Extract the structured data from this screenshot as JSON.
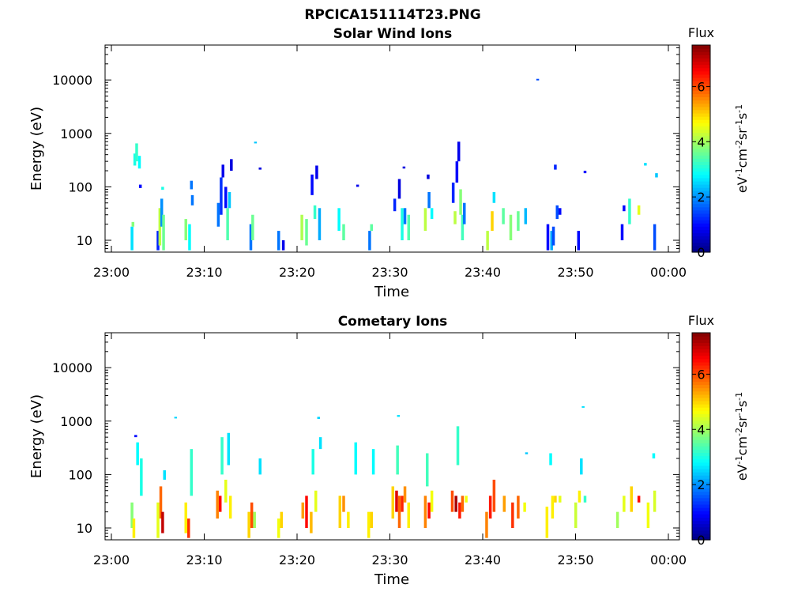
{
  "figure": {
    "filename": "RPCICA151114T23.PNG"
  },
  "colors": {
    "jet": [
      "#00007f",
      "#0000ff",
      "#007fff",
      "#00ffff",
      "#7fff7f",
      "#ffff00",
      "#ff7f00",
      "#ff0000",
      "#7f0000"
    ]
  },
  "chart_data": [
    {
      "type": "heatmap",
      "title": "Solar Wind Ions",
      "xlabel": "Time",
      "ylabel": "Energy (eV)",
      "xticks": [
        "23:00",
        "23:10",
        "23:20",
        "23:30",
        "23:40",
        "23:50",
        "00:00"
      ],
      "xlim_min": [
        0,
        61.5
      ],
      "yscale": "log",
      "yticks": [
        10,
        100,
        1000,
        10000
      ],
      "yticklabels": [
        "10",
        "100",
        "1000",
        "10000"
      ],
      "ylim": [
        6,
        45000
      ],
      "colorbar": {
        "title": "Flux",
        "label": "eV-1cm-2sr-1s-1",
        "range": [
          0,
          7.5
        ],
        "ticks": [
          0,
          2,
          4,
          6
        ]
      },
      "cells": [
        [
          2.2,
          6.5,
          18,
          2.6
        ],
        [
          2.3,
          18,
          22,
          3.8
        ],
        [
          2.5,
          250,
          420,
          3
        ],
        [
          2.7,
          300,
          650,
          3.2
        ],
        [
          3.0,
          220,
          380,
          2.8
        ],
        [
          3.1,
          95,
          110,
          1
        ],
        [
          5.0,
          6.5,
          15,
          1.2
        ],
        [
          5.2,
          8,
          40,
          4.2
        ],
        [
          5.4,
          18,
          60,
          2
        ],
        [
          5.6,
          6.5,
          30,
          3.6
        ],
        [
          5.5,
          88,
          100,
          3
        ],
        [
          8.0,
          10,
          25,
          3.8
        ],
        [
          8.4,
          6.5,
          20,
          2.8
        ],
        [
          8.7,
          45,
          70,
          1.8
        ],
        [
          8.6,
          90,
          130,
          1.8
        ],
        [
          11.5,
          18,
          50,
          1.8
        ],
        [
          11.8,
          30,
          150,
          1.3
        ],
        [
          12.0,
          150,
          260,
          0.8
        ],
        [
          12.3,
          40,
          100,
          1
        ],
        [
          12.5,
          10,
          40,
          3.4
        ],
        [
          12.7,
          40,
          80,
          2.4
        ],
        [
          12.9,
          200,
          330,
          0.7
        ],
        [
          15.0,
          6.5,
          20,
          1.8
        ],
        [
          15.2,
          10,
          30,
          3.6
        ],
        [
          15.5,
          650,
          700,
          2.4
        ],
        [
          16.0,
          210,
          230,
          0.7
        ],
        [
          18.0,
          6.5,
          15,
          1.8
        ],
        [
          18.5,
          6.5,
          10,
          0.8
        ],
        [
          20.5,
          10,
          30,
          4.1
        ],
        [
          21.0,
          8,
          25,
          3.6
        ],
        [
          21.6,
          70,
          170,
          1
        ],
        [
          21.9,
          25,
          45,
          3.2
        ],
        [
          22.1,
          140,
          250,
          0.8
        ],
        [
          22.4,
          10,
          40,
          2.2
        ],
        [
          24.5,
          15,
          40,
          2.8
        ],
        [
          25.0,
          10,
          20,
          3.5
        ],
        [
          26.5,
          100,
          110,
          0.8
        ],
        [
          27.8,
          6.5,
          15,
          1.8
        ],
        [
          28.0,
          15,
          20,
          3.5
        ],
        [
          30.5,
          35,
          60,
          1.2
        ],
        [
          31.0,
          60,
          140,
          0.7
        ],
        [
          31.3,
          10,
          40,
          3
        ],
        [
          31.6,
          20,
          40,
          1.8
        ],
        [
          32.0,
          10,
          30,
          3.4
        ],
        [
          31.5,
          220,
          240,
          0.7
        ],
        [
          33.8,
          15,
          40,
          4.2
        ],
        [
          34.2,
          40,
          80,
          1.8
        ],
        [
          34.5,
          25,
          40,
          2.8
        ],
        [
          34.1,
          140,
          170,
          0.7
        ],
        [
          36.8,
          50,
          120,
          1.2
        ],
        [
          37.2,
          120,
          300,
          0.9
        ],
        [
          37.4,
          300,
          700,
          0.8
        ],
        [
          37.6,
          30,
          90,
          3.8
        ],
        [
          37.8,
          10,
          30,
          3.3
        ],
        [
          38.0,
          20,
          50,
          1.8
        ],
        [
          37.0,
          20,
          35,
          4.2
        ],
        [
          40.5,
          6.5,
          15,
          4.2
        ],
        [
          41.0,
          15,
          35,
          5
        ],
        [
          41.2,
          50,
          80,
          2.6
        ],
        [
          42.2,
          20,
          40,
          3.5
        ],
        [
          43.0,
          10,
          30,
          3.8
        ],
        [
          43.8,
          15,
          35,
          3.6
        ],
        [
          44.6,
          20,
          40,
          2.3
        ],
        [
          45.9,
          10000,
          10500,
          1.5
        ],
        [
          47.0,
          6.5,
          20,
          1
        ],
        [
          47.4,
          6.5,
          15,
          2.2
        ],
        [
          47.6,
          8,
          18,
          1.5
        ],
        [
          47.8,
          210,
          260,
          1.2
        ],
        [
          48.0,
          25,
          45,
          1.5
        ],
        [
          48.3,
          30,
          40,
          1
        ],
        [
          50.3,
          6.5,
          15,
          1
        ],
        [
          51.0,
          180,
          200,
          1
        ],
        [
          55.0,
          10,
          20,
          1
        ],
        [
          55.2,
          35,
          45,
          1
        ],
        [
          55.8,
          20,
          60,
          3.2
        ],
        [
          56.8,
          30,
          45,
          4.5
        ],
        [
          57.5,
          250,
          280,
          2.6
        ],
        [
          58.5,
          6.5,
          20,
          1.5
        ],
        [
          58.7,
          150,
          180,
          2.4
        ]
      ]
    },
    {
      "type": "heatmap",
      "title": "Cometary Ions",
      "xlabel": "Time",
      "ylabel": "Energy (eV)",
      "xticks": [
        "23:00",
        "23:10",
        "23:20",
        "23:30",
        "23:40",
        "23:50",
        "00:00"
      ],
      "xlim_min": [
        0,
        61.5
      ],
      "yscale": "log",
      "yticks": [
        10,
        100,
        1000,
        10000
      ],
      "yticklabels": [
        "10",
        "100",
        "1000",
        "10000"
      ],
      "ylim": [
        6,
        45000
      ],
      "colorbar": {
        "title": "Flux",
        "label": "eV-1cm-2sr-1s-1",
        "range": [
          0,
          7.5
        ],
        "ticks": [
          0,
          2,
          4,
          6
        ]
      },
      "cells": [
        [
          2.2,
          10,
          30,
          3.8
        ],
        [
          2.4,
          6.5,
          15,
          4.8
        ],
        [
          2.6,
          500,
          550,
          1
        ],
        [
          2.8,
          150,
          400,
          2.8
        ],
        [
          3.2,
          40,
          200,
          3
        ],
        [
          5.0,
          6.5,
          30,
          4.5
        ],
        [
          5.3,
          15,
          60,
          5.8
        ],
        [
          5.5,
          8,
          20,
          7
        ],
        [
          5.7,
          80,
          120,
          2.6
        ],
        [
          6.9,
          1150,
          1200,
          2.5
        ],
        [
          8.0,
          8,
          30,
          4.8
        ],
        [
          8.3,
          6.5,
          15,
          6.2
        ],
        [
          8.6,
          40,
          300,
          3.2
        ],
        [
          11.4,
          15,
          50,
          5.6
        ],
        [
          11.7,
          20,
          40,
          6.5
        ],
        [
          11.9,
          100,
          500,
          3.2
        ],
        [
          12.3,
          30,
          80,
          4.5
        ],
        [
          12.6,
          150,
          600,
          2.6
        ],
        [
          12.8,
          15,
          40,
          4.8
        ],
        [
          14.8,
          6.5,
          20,
          5
        ],
        [
          15.1,
          10,
          30,
          6
        ],
        [
          15.4,
          10,
          20,
          4
        ],
        [
          16.0,
          100,
          200,
          2.6
        ],
        [
          18.0,
          6.5,
          15,
          4.6
        ],
        [
          18.3,
          10,
          20,
          5
        ],
        [
          20.6,
          15,
          30,
          5.4
        ],
        [
          21.0,
          10,
          40,
          6.5
        ],
        [
          21.5,
          8,
          20,
          5.2
        ],
        [
          21.7,
          100,
          300,
          3
        ],
        [
          22.0,
          20,
          50,
          4.5
        ],
        [
          22.3,
          1100,
          1200,
          2.5
        ],
        [
          22.5,
          300,
          500,
          2.6
        ],
        [
          24.6,
          10,
          40,
          5
        ],
        [
          25.0,
          20,
          40,
          5.5
        ],
        [
          25.5,
          10,
          20,
          4.8
        ],
        [
          26.3,
          100,
          400,
          2.8
        ],
        [
          27.7,
          6.5,
          20,
          4.8
        ],
        [
          28.0,
          10,
          20,
          5
        ],
        [
          28.2,
          100,
          300,
          2.8
        ],
        [
          30.3,
          15,
          60,
          5
        ],
        [
          30.7,
          20,
          50,
          6.8
        ],
        [
          31.0,
          10,
          40,
          5.8
        ],
        [
          31.3,
          20,
          40,
          6.3
        ],
        [
          31.6,
          30,
          60,
          5.5
        ],
        [
          32.0,
          10,
          30,
          4.8
        ],
        [
          30.8,
          100,
          350,
          3.3
        ],
        [
          30.9,
          1200,
          1300,
          2.6
        ],
        [
          33.8,
          10,
          40,
          5.6
        ],
        [
          34.2,
          15,
          30,
          6.5
        ],
        [
          34.5,
          20,
          50,
          4.6
        ],
        [
          34.0,
          60,
          250,
          3.3
        ],
        [
          36.7,
          20,
          50,
          6
        ],
        [
          37.1,
          20,
          40,
          7.2
        ],
        [
          37.5,
          15,
          30,
          6.4
        ],
        [
          37.8,
          20,
          40,
          5.8
        ],
        [
          37.3,
          150,
          800,
          3.2
        ],
        [
          38.2,
          30,
          40,
          4.6
        ],
        [
          40.4,
          6.5,
          20,
          5.6
        ],
        [
          40.8,
          15,
          40,
          6.4
        ],
        [
          41.2,
          20,
          80,
          6
        ],
        [
          42.3,
          20,
          40,
          5.4
        ],
        [
          43.2,
          10,
          30,
          6.2
        ],
        [
          43.8,
          15,
          40,
          5.8
        ],
        [
          44.5,
          20,
          30,
          4.6
        ],
        [
          44.7,
          240,
          260,
          2.4
        ],
        [
          46.9,
          6.5,
          25,
          4.8
        ],
        [
          47.5,
          15,
          40,
          4.8
        ],
        [
          47.8,
          30,
          40,
          5
        ],
        [
          47.3,
          150,
          250,
          2.8
        ],
        [
          48.3,
          30,
          40,
          4.5
        ],
        [
          50.0,
          10,
          30,
          4.3
        ],
        [
          50.4,
          30,
          50,
          4.8
        ],
        [
          50.6,
          100,
          200,
          2.6
        ],
        [
          50.8,
          1800,
          1900,
          2.6
        ],
        [
          51.0,
          30,
          40,
          3.2
        ],
        [
          54.5,
          10,
          20,
          4
        ],
        [
          55.2,
          20,
          40,
          4.5
        ],
        [
          56.0,
          20,
          60,
          5
        ],
        [
          56.8,
          30,
          40,
          6.5
        ],
        [
          57.8,
          10,
          30,
          4.6
        ],
        [
          58.5,
          20,
          50,
          4.4
        ],
        [
          58.4,
          200,
          250,
          2.8
        ]
      ]
    }
  ]
}
